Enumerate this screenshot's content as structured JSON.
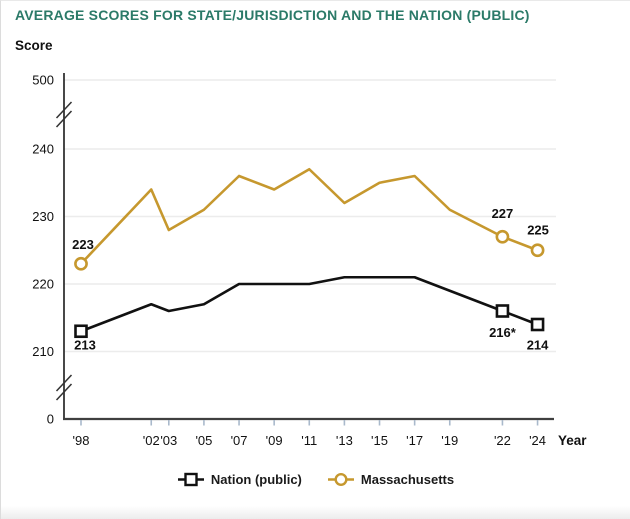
{
  "header": {
    "title": "AVERAGE SCORES FOR STATE/JURISDICTION AND THE NATION (PUBLIC)"
  },
  "chart_data": {
    "type": "line",
    "title": "AVERAGE SCORES FOR STATE/JURISDICTION AND THE NATION (PUBLIC)",
    "ylabel": "Score",
    "xlabel": "Year",
    "x": [
      1998,
      2002,
      2003,
      2005,
      2007,
      2009,
      2011,
      2013,
      2015,
      2017,
      2019,
      2022,
      2024
    ],
    "x_tick_labels": [
      "'98",
      "'02",
      "'03",
      "'05",
      "'07",
      "'09",
      "'11",
      "'13",
      "'15",
      "'17",
      "'19",
      "'22",
      "'24"
    ],
    "y_axis": {
      "title": "Score",
      "ticks": [
        500,
        240,
        230,
        220,
        210,
        0
      ],
      "gridlines": [
        500,
        240,
        230,
        220,
        210
      ],
      "broken_axis": true,
      "breaks": [
        "between 240 and 500",
        "between 0 and 210"
      ]
    },
    "marker_years": [
      1998,
      2022,
      2024
    ],
    "legend_position": "bottom",
    "grid": true,
    "series": [
      {
        "name": "Massachusetts",
        "color": "#C6982E",
        "marker": "circle",
        "values": [
          223,
          234,
          228,
          231,
          236,
          234,
          237,
          232,
          235,
          236,
          231,
          227,
          225
        ],
        "labeled_points": [
          {
            "year": 1998,
            "label": "223",
            "dx": 2,
            "dy": -15
          },
          {
            "year": 2022,
            "label": "227",
            "dx": 0,
            "dy": -19
          },
          {
            "year": 2024,
            "label": "225",
            "dx": 0.5,
            "dy": -16
          }
        ]
      },
      {
        "name": "Nation (public)",
        "color": "#111111",
        "marker": "square",
        "values": [
          213,
          217,
          216,
          217,
          220,
          220,
          220,
          221,
          221,
          221,
          219,
          216,
          214
        ],
        "labeled_points": [
          {
            "year": 1998,
            "label": "213",
            "dx": 4,
            "dy": 18
          },
          {
            "year": 2022,
            "label": "216*",
            "dx": 0,
            "dy": 26
          },
          {
            "year": 2024,
            "label": "214",
            "dx": 0,
            "dy": 25
          }
        ]
      }
    ]
  },
  "legend": {
    "nation_label": "Nation (public)",
    "massachusetts_label": "Massachusetts"
  },
  "colors": {
    "title_teal": "#2B7A68",
    "massachusetts_gold": "#C6982E",
    "nation_black": "#111111",
    "gridline": "#ECECEC",
    "axis": "#3F3F3F",
    "x_tick": "#A9B9CB"
  }
}
